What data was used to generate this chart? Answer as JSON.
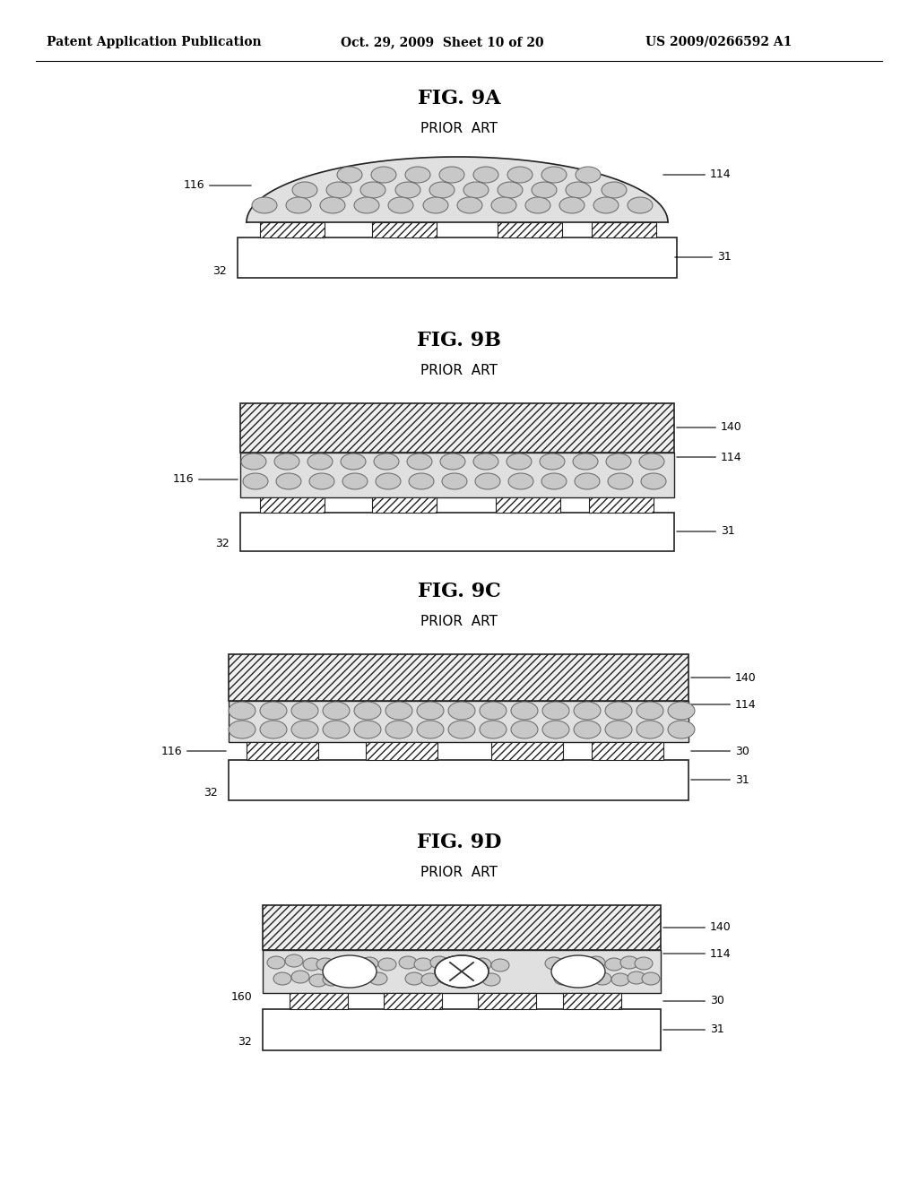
{
  "bg_color": "#ffffff",
  "header_left": "Patent Application Publication",
  "header_mid": "Oct. 29, 2009  Sheet 10 of 20",
  "header_right": "US 2009/0266592 A1",
  "dot_fill": "#c8c8c8",
  "dot_edge": "#666666",
  "hatch_fill": "#f0f0f0",
  "board_fill": "#ffffff",
  "board_edge": "#222222",
  "solder_fill": "#e0e0e0"
}
